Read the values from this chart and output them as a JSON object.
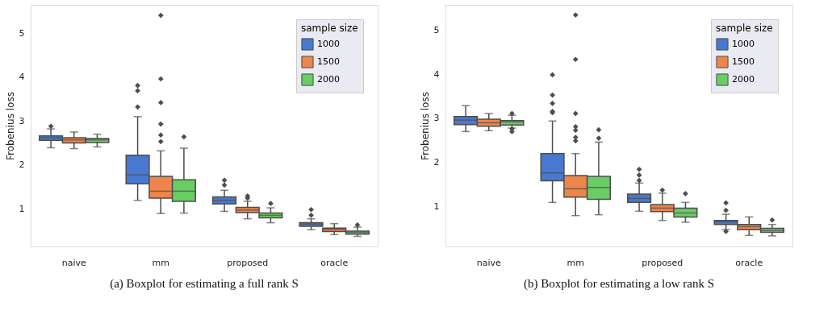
{
  "chart_data": [
    {
      "type": "box",
      "ylabel": "Frobenius loss",
      "legend_title": "sample size",
      "legend": "top right",
      "grid": "y",
      "ylim": [
        0.14,
        5.65
      ],
      "yticks": [
        1,
        2,
        3,
        4,
        5
      ],
      "categories": [
        "naive",
        "mm",
        "proposed",
        "oracle"
      ],
      "annotations": [
        "(a) Boxplot for estimating a full rank S"
      ],
      "series": [
        {
          "name": "1000",
          "color": "#4878d0",
          "boxes": [
            {
              "low": 2.39,
              "q1": 2.56,
              "median": 2.62,
              "q3": 2.66,
              "high": 2.82,
              "outliers": [
                2.88
              ]
            },
            {
              "low": 1.19,
              "q1": 1.57,
              "median": 1.77,
              "q3": 2.22,
              "high": 3.1,
              "outliers": [
                3.32,
                3.69,
                3.81
              ]
            },
            {
              "low": 0.94,
              "q1": 1.11,
              "median": 1.19,
              "q3": 1.27,
              "high": 1.42,
              "outliers": [
                1.54,
                1.65
              ]
            },
            {
              "low": 0.52,
              "q1": 0.6,
              "median": 0.65,
              "q3": 0.68,
              "high": 0.77,
              "outliers": [
                0.85,
                0.98
              ]
            }
          ]
        },
        {
          "name": "1500",
          "color": "#ee854a",
          "boxes": [
            {
              "low": 2.37,
              "q1": 2.5,
              "median": 2.57,
              "q3": 2.62,
              "high": 2.75
            },
            {
              "low": 0.89,
              "q1": 1.24,
              "median": 1.4,
              "q3": 1.74,
              "high": 2.32,
              "outliers": [
                2.53,
                2.68,
                2.93,
                3.42,
                3.96,
                5.41
              ]
            },
            {
              "low": 0.77,
              "q1": 0.91,
              "median": 0.97,
              "q3": 1.03,
              "high": 1.17,
              "outliers": [
                1.24,
                1.29
              ]
            },
            {
              "low": 0.41,
              "q1": 0.48,
              "median": 0.53,
              "q3": 0.56,
              "high": 0.66
            }
          ]
        },
        {
          "name": "2000",
          "color": "#6acc64",
          "boxes": [
            {
              "low": 2.41,
              "q1": 2.51,
              "median": 2.57,
              "q3": 2.6,
              "high": 2.7
            },
            {
              "low": 0.9,
              "q1": 1.17,
              "median": 1.4,
              "q3": 1.66,
              "high": 2.38,
              "outliers": [
                2.64
              ]
            },
            {
              "low": 0.68,
              "q1": 0.79,
              "median": 0.85,
              "q3": 0.9,
              "high": 1.02,
              "outliers": [
                1.12
              ]
            },
            {
              "low": 0.37,
              "q1": 0.42,
              "median": 0.46,
              "q3": 0.49,
              "high": 0.58,
              "outliers": [
                0.63
              ]
            }
          ]
        }
      ]
    },
    {
      "type": "box",
      "ylabel": "Frobenius loss",
      "legend_title": "sample size",
      "legend": "top right",
      "grid": "y",
      "ylim": [
        0.09,
        5.58
      ],
      "yticks": [
        1,
        2,
        3,
        4,
        5
      ],
      "categories": [
        "naive",
        "mm",
        "proposed",
        "oracle"
      ],
      "annotations": [
        "(b) Boxplot for estimating a low rank S"
      ],
      "series": [
        {
          "name": "1000",
          "color": "#4878d0",
          "boxes": [
            {
              "low": 2.7,
              "q1": 2.86,
              "median": 2.96,
              "q3": 3.04,
              "high": 3.29
            },
            {
              "low": 1.09,
              "q1": 1.58,
              "median": 1.76,
              "q3": 2.2,
              "high": 2.94,
              "outliers": [
                3.13,
                3.16,
                3.34,
                3.53,
                3.99
              ]
            },
            {
              "low": 0.89,
              "q1": 1.09,
              "median": 1.18,
              "q3": 1.28,
              "high": 1.53,
              "outliers": [
                1.59,
                1.71,
                1.84
              ]
            },
            {
              "low": 0.47,
              "q1": 0.59,
              "median": 0.65,
              "q3": 0.68,
              "high": 0.82,
              "outliers": [
                0.43,
                0.91,
                1.08
              ]
            }
          ]
        },
        {
          "name": "1500",
          "color": "#ee854a",
          "boxes": [
            {
              "low": 2.72,
              "q1": 2.82,
              "median": 2.9,
              "q3": 2.98,
              "high": 3.11
            },
            {
              "low": 0.79,
              "q1": 1.21,
              "median": 1.4,
              "q3": 1.7,
              "high": 2.2,
              "outliers": [
                2.49,
                2.57,
                2.73,
                2.81,
                3.11,
                4.34,
                5.35
              ]
            },
            {
              "low": 0.68,
              "q1": 0.88,
              "median": 0.96,
              "q3": 1.04,
              "high": 1.3,
              "outliers": [
                1.37
              ]
            },
            {
              "low": 0.34,
              "q1": 0.47,
              "median": 0.54,
              "q3": 0.59,
              "high": 0.76
            }
          ]
        },
        {
          "name": "2000",
          "color": "#6acc64",
          "boxes": [
            {
              "low": 2.78,
              "q1": 2.85,
              "median": 2.92,
              "q3": 2.95,
              "high": 3.07,
              "outliers": [
                2.7,
                2.76,
                3.11
              ]
            },
            {
              "low": 0.81,
              "q1": 1.16,
              "median": 1.43,
              "q3": 1.68,
              "high": 2.46,
              "outliers": [
                2.55,
                2.74
              ]
            },
            {
              "low": 0.64,
              "q1": 0.76,
              "median": 0.85,
              "q3": 0.96,
              "high": 1.09,
              "outliers": [
                1.29
              ]
            },
            {
              "low": 0.33,
              "q1": 0.41,
              "median": 0.45,
              "q3": 0.5,
              "high": 0.59,
              "outliers": [
                0.69
              ]
            }
          ]
        }
      ]
    }
  ]
}
